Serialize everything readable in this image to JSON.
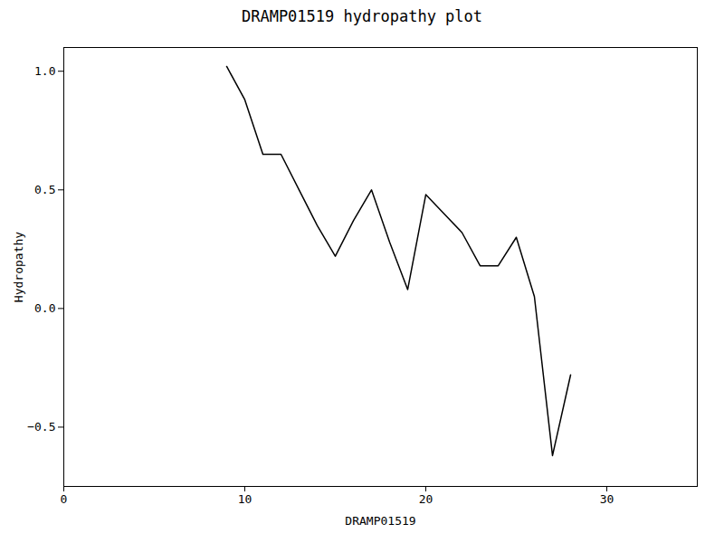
{
  "chart_data": {
    "type": "line",
    "title": "DRAMP01519 hydropathy plot",
    "xlabel": "DRAMP01519",
    "ylabel": "Hydropathy",
    "x": [
      9,
      10,
      11,
      12,
      13,
      14,
      15,
      16,
      17,
      18,
      19,
      20,
      21,
      22,
      23,
      24,
      25,
      26,
      27,
      28
    ],
    "values": [
      1.02,
      0.88,
      0.65,
      0.65,
      0.5,
      0.35,
      0.22,
      0.37,
      0.5,
      0.28,
      0.08,
      0.48,
      0.4,
      0.32,
      0.18,
      0.18,
      0.3,
      0.05,
      -0.62,
      -0.28
    ],
    "color": "#000000",
    "xlim": [
      0,
      35
    ],
    "ylim": [
      -0.75,
      1.1
    ],
    "xticks": [
      0,
      10,
      20,
      30
    ],
    "yticks": [
      -0.5,
      {
        "value": 0,
        "label": "0.0"
      },
      0.5,
      {
        "value": 1,
        "label": "1.0"
      }
    ],
    "grid": false
  }
}
